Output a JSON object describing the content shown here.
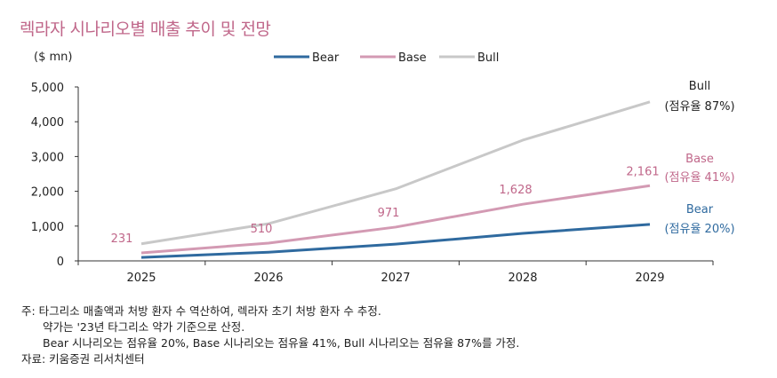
{
  "title": "렉라자 시나리오별 매출 추이 및 전망",
  "chart_data": {
    "type": "line",
    "title": "렉라자 시나리오별 매출 추이 및 전망",
    "ylabel": "($ mn)",
    "xlabel": "",
    "ylim": [
      0,
      5000
    ],
    "yticks": [
      "0",
      "1,000",
      "2,000",
      "3,000",
      "4,000",
      "5,000"
    ],
    "ytick_values": [
      0,
      1000,
      2000,
      3000,
      4000,
      5000
    ],
    "categories": [
      "2025",
      "2026",
      "2027",
      "2028",
      "2029"
    ],
    "legend_position": "top-center",
    "series": [
      {
        "name": "Bear",
        "color": "#2f6a9f",
        "values": [
          100,
          250,
          480,
          790,
          1050
        ],
        "end_label": [
          "Bear",
          "(점유율 20%)"
        ]
      },
      {
        "name": "Base",
        "color": "#d39ab3",
        "values": [
          231,
          510,
          971,
          1628,
          2161
        ],
        "data_labels": [
          "231",
          "510",
          "971",
          "1,628",
          "2,161"
        ],
        "end_label": [
          "Base",
          "(점유율 41%)"
        ]
      },
      {
        "name": "Bull",
        "color": "#c8c8c8",
        "values": [
          490,
          1070,
          2070,
          3470,
          4570
        ],
        "end_label": [
          "Bull",
          "(점유율 87%)"
        ]
      }
    ]
  },
  "notes": [
    "주: 타그리소 매출액과 처방 환자 수 역산하여, 렉라자 초기 처방 환자 수 추정.",
    "약가는 '23년 타그리소 약가 기준으로 산정.",
    "Bear 시나리오는 점유율 20%, Base 시나리오는 점유율 41%, Bull 시나리오는 점유율 87%를 가정.",
    "자료: 키움증권 리서치센터"
  ]
}
